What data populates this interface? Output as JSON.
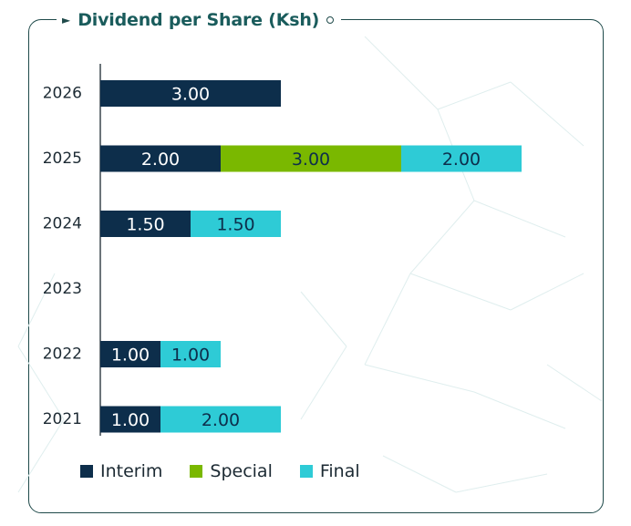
{
  "chart_data": {
    "type": "bar",
    "orientation": "horizontal",
    "stacked": true,
    "title": "Dividend per Share (Ksh)",
    "categories": [
      "2026",
      "2025",
      "2024",
      "2023",
      "2022",
      "2021"
    ],
    "series": [
      {
        "name": "Interim",
        "color": "#0d2e4b",
        "values": [
          3.0,
          2.0,
          1.5,
          null,
          1.0,
          1.0
        ]
      },
      {
        "name": "Special",
        "color": "#7ab800",
        "values": [
          null,
          3.0,
          null,
          null,
          null,
          null
        ]
      },
      {
        "name": "Final",
        "color": "#2ecbd6",
        "values": [
          null,
          2.0,
          1.5,
          null,
          1.0,
          2.0
        ]
      }
    ],
    "value_labels": true,
    "label_format": "2 decimals",
    "legend_position": "bottom-left",
    "grid": false
  }
}
